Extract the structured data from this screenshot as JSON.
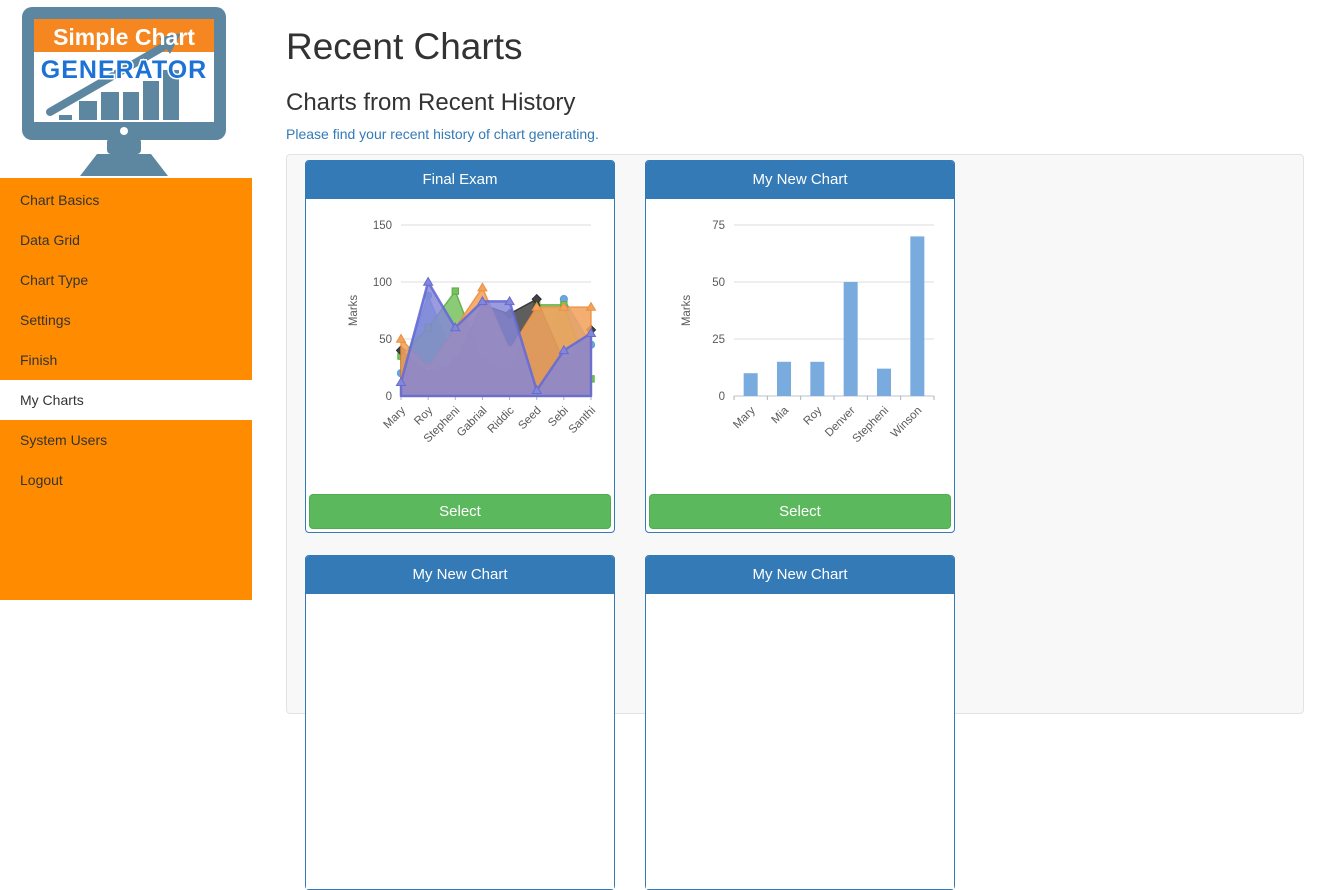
{
  "logo": {
    "line1": "Simple Chart",
    "line2": "GENERATOR"
  },
  "colors": {
    "sidebar_orange": "#ff8c00",
    "panel_header_blue": "#337ab7",
    "select_green": "#5cb85c",
    "select_green_border": "#4cae4c",
    "note_blue": "#337ab7",
    "well_background": "#f8f8f8",
    "logo_monitor_blue": "#5d87a1",
    "logo_banner_orange": "#f6861f",
    "logo_generator_blue": "#1d72d6",
    "bar_blue": "#79abdf"
  },
  "sidebar": {
    "items": [
      {
        "label": "Chart Basics",
        "active": false
      },
      {
        "label": "Data Grid",
        "active": false
      },
      {
        "label": "Chart Type",
        "active": false
      },
      {
        "label": "Settings",
        "active": false
      },
      {
        "label": "Finish",
        "active": false
      },
      {
        "label": "My Charts",
        "active": true
      },
      {
        "label": "System Users",
        "active": false
      },
      {
        "label": "Logout",
        "active": false
      }
    ]
  },
  "header": {
    "title": "Recent Charts",
    "subtitle": "Charts from Recent History",
    "note": "Please find your recent history of chart generating."
  },
  "cards": [
    {
      "title": "Final Exam",
      "button_label": "Select"
    },
    {
      "title": "My New Chart",
      "button_label": "Select"
    },
    {
      "title": "My New Chart"
    },
    {
      "title": "My New Chart"
    }
  ],
  "chart_data": [
    {
      "type": "area",
      "title": "Final Exam",
      "xlabel": "",
      "ylabel": "Marks",
      "ylim": [
        0,
        150
      ],
      "yticks": [
        150,
        100,
        50,
        0
      ],
      "grid": true,
      "legend": false,
      "categories": [
        "Mary",
        "Roy",
        "Stepheni",
        "Gabrial",
        "Riddic",
        "Seed",
        "Sebi",
        "Santhi"
      ],
      "series": [
        {
          "id": "light-blue-area",
          "color": "#6ba7de",
          "stroke": "#5b9bd5",
          "marker": "circle",
          "opacity": 0.85,
          "values": [
            20,
            88,
            30,
            25,
            15,
            30,
            85,
            45
          ]
        },
        {
          "id": "green-area",
          "color": "#77c15e",
          "stroke": "#5aad42",
          "marker": "square",
          "opacity": 0.85,
          "values": [
            35,
            60,
            92,
            30,
            20,
            80,
            80,
            15
          ]
        },
        {
          "id": "dark-area",
          "color": "#424242",
          "stroke": "#2e2e2e",
          "marker": "diamond",
          "opacity": 0.85,
          "values": [
            40,
            20,
            30,
            80,
            72,
            85,
            30,
            58
          ]
        },
        {
          "id": "orange-area",
          "color": "#f2a35e",
          "stroke": "#ec8f3e",
          "marker": "triangle",
          "opacity": 0.88,
          "values": [
            50,
            25,
            60,
            95,
            40,
            78,
            78,
            78
          ]
        },
        {
          "id": "purple-area",
          "color": "#8486d8",
          "stroke": "#666bd3",
          "marker": "triangle",
          "opacity": 0.82,
          "stroke_width": 2.5,
          "values": [
            12,
            100,
            60,
            83,
            83,
            5,
            40,
            55
          ]
        }
      ]
    },
    {
      "type": "bar",
      "title": "My New Chart",
      "xlabel": "",
      "ylabel": "Marks",
      "ylim": [
        0,
        75
      ],
      "yticks": [
        75,
        50,
        25,
        0
      ],
      "grid": true,
      "legend": false,
      "categories": [
        "Mary",
        "Mia",
        "Roy",
        "Denver",
        "Stepheni",
        "Winson"
      ],
      "values": [
        10,
        15,
        15,
        50,
        12,
        70
      ],
      "bar_color": "#79abdf"
    }
  ]
}
